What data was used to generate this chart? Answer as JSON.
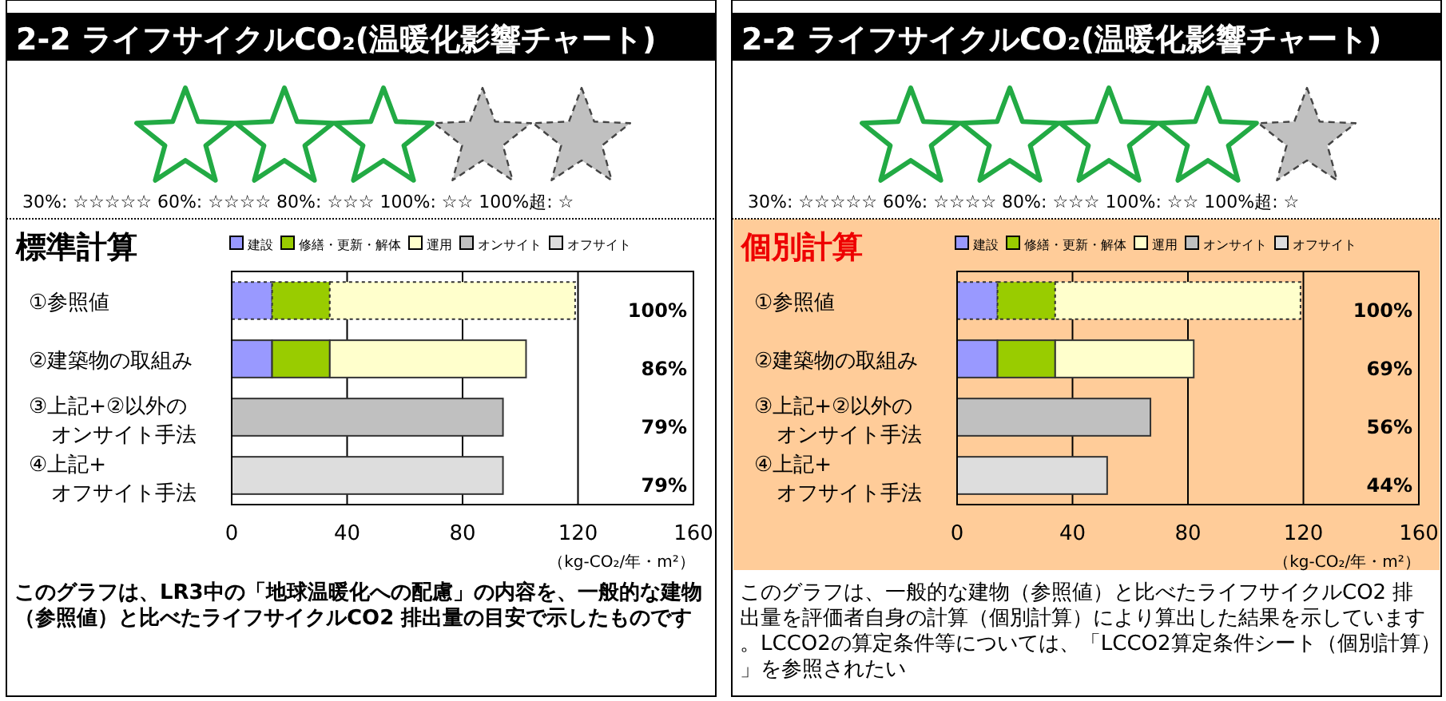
{
  "chart_data": [
    {
      "type": "bar",
      "orientation": "horizontal",
      "stacked": true,
      "title": "2-2 ライフサイクルCO₂(温暖化影響チャート)",
      "subtitle": "標準計算",
      "xlabel": "（kg-CO₂/年・m²）",
      "categories": [
        "①参照値",
        "②建築物の取組み",
        "③上記+②以外のオンサイト手法",
        "④上記+オフサイト手法"
      ],
      "series": [
        {
          "name": "建設",
          "color": "#9999ff",
          "values": [
            14,
            14,
            null,
            null
          ]
        },
        {
          "name": "修繕・更新・解体",
          "color": "#99cc00",
          "values": [
            20,
            20,
            null,
            null
          ]
        },
        {
          "name": "運用",
          "color": "#ffffcc",
          "values": [
            85,
            68,
            null,
            null
          ]
        },
        {
          "name": "オンサイト",
          "color": "#c0c0c0",
          "values": [
            null,
            null,
            94,
            null
          ]
        },
        {
          "name": "オフサイト",
          "color": "#dddddd",
          "values": [
            null,
            null,
            null,
            94
          ]
        }
      ],
      "xlim": [
        0,
        160
      ],
      "xticks": [
        0,
        40,
        80,
        120,
        160
      ],
      "grid": "x",
      "legend": "top",
      "annotations": [
        "100%",
        "86%",
        "79%",
        "79%",
        "30%: ☆☆☆☆☆ 60%: ☆☆☆☆ 80%: ☆☆☆ 100%: ☆☆ 100%超: ☆",
        "このグラフは、LR3中の「地球温暖化への配慮」の内容を、一般的な建物（参照値）と比べたライフサイクルCO2 排出量の目安で示したものです"
      ]
    },
    {
      "type": "bar",
      "orientation": "horizontal",
      "stacked": true,
      "title": "2-2 ライフサイクルCO₂(温暖化影響チャート)",
      "subtitle": "個別計算",
      "xlabel": "（kg-CO₂/年・m²）",
      "categories": [
        "①参照値",
        "②建築物の取組み",
        "③上記+②以外のオンサイト手法",
        "④上記+オフサイト手法"
      ],
      "series": [
        {
          "name": "建設",
          "color": "#9999ff",
          "values": [
            14,
            14,
            null,
            null
          ]
        },
        {
          "name": "修繕・更新・解体",
          "color": "#99cc00",
          "values": [
            20,
            20,
            null,
            null
          ]
        },
        {
          "name": "運用",
          "color": "#ffffcc",
          "values": [
            85,
            48,
            null,
            null
          ]
        },
        {
          "name": "オンサイト",
          "color": "#c0c0c0",
          "values": [
            null,
            null,
            67,
            null
          ]
        },
        {
          "name": "オフサイト",
          "color": "#dddddd",
          "values": [
            null,
            null,
            null,
            52
          ]
        }
      ],
      "xlim": [
        0,
        160
      ],
      "xticks": [
        0,
        40,
        80,
        120,
        160
      ],
      "grid": "x",
      "legend": "top",
      "annotations": [
        "100%",
        "69%",
        "56%",
        "44%",
        "30%: ☆☆☆☆☆ 60%: ☆☆☆☆ 80%: ☆☆☆ 100%: ☆☆ 100%超: ☆",
        "このグラフは、一般的な建物（参照値）と比べたライフサイクルCO2 排出量を評価者自身の計算（個別計算）により算出した結果を示しています。LCCO2の算定条件等については、「LCCO2算定条件シート（個別計算）」を参照されたい"
      ]
    }
  ]
}
